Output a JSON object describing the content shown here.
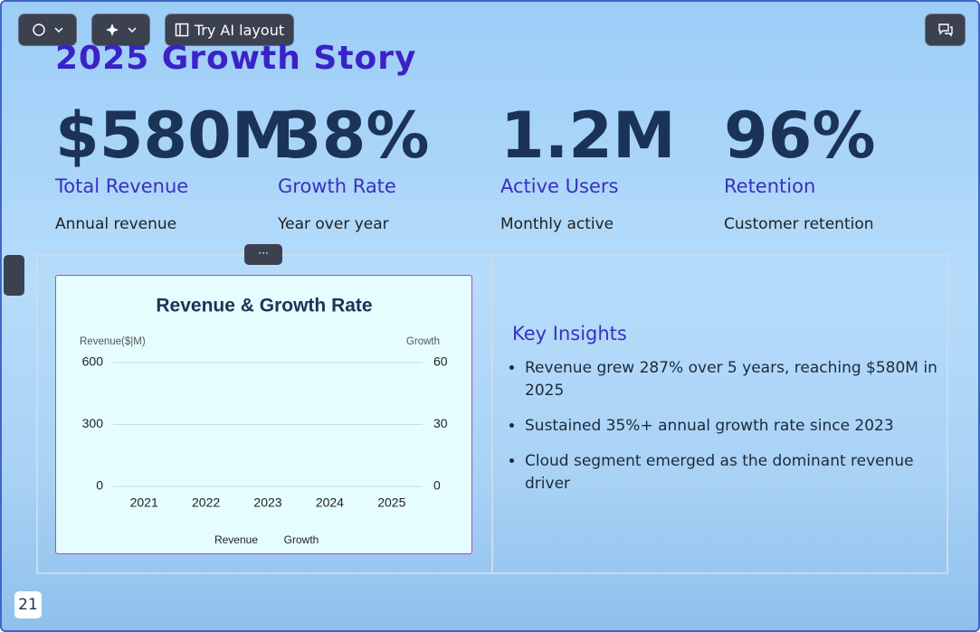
{
  "toolbar": {
    "ai_layout": "Try AI layout"
  },
  "slide": {
    "title": "2025 Growth Story",
    "stats": [
      {
        "value": "$580M",
        "label": "Total Revenue",
        "sub": "Annual revenue"
      },
      {
        "value": "38%",
        "label": "Growth Rate",
        "sub": "Year over year"
      },
      {
        "value": "1.2M",
        "label": "Active Users",
        "sub": "Monthly active"
      },
      {
        "value": "96%",
        "label": "Retention",
        "sub": "Customer retention"
      }
    ],
    "insights": {
      "title": "Key Insights",
      "items": [
        "Revenue grew 287% over 5 years, reaching $580M in 2025",
        "Sustained 35%+ annual growth rate since 2023",
        "Cloud segment emerged as the dominant revenue driver"
      ]
    },
    "page_number": "21"
  },
  "chart_data": {
    "type": "bar",
    "title": "Revenue & Growth Rate",
    "y_label": "Revenue($|M)",
    "y2_label": "Growth",
    "categories": [
      "2021",
      "2022",
      "2023",
      "2024",
      "2025"
    ],
    "series": [
      {
        "name": "Revenue",
        "values": [
          null,
          null,
          null,
          null,
          null
        ]
      },
      {
        "name": "Growth",
        "axis": "y2",
        "values": [
          null,
          null,
          null,
          null,
          null
        ]
      }
    ],
    "ylim": [
      0,
      600
    ],
    "yticks": [
      0,
      300,
      600
    ],
    "y2lim": [
      0,
      60
    ],
    "y2ticks": [
      0,
      30,
      60
    ],
    "grid": true
  }
}
